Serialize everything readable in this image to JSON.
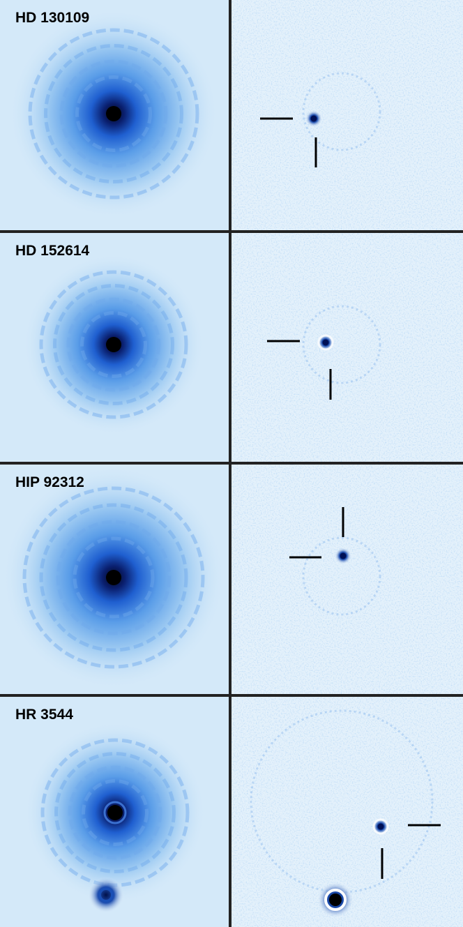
{
  "panels": [
    {
      "label": "HD 130109"
    },
    {
      "label": "HD 152614"
    },
    {
      "label": "HIP 92312"
    },
    {
      "label": "HR 3544"
    }
  ]
}
